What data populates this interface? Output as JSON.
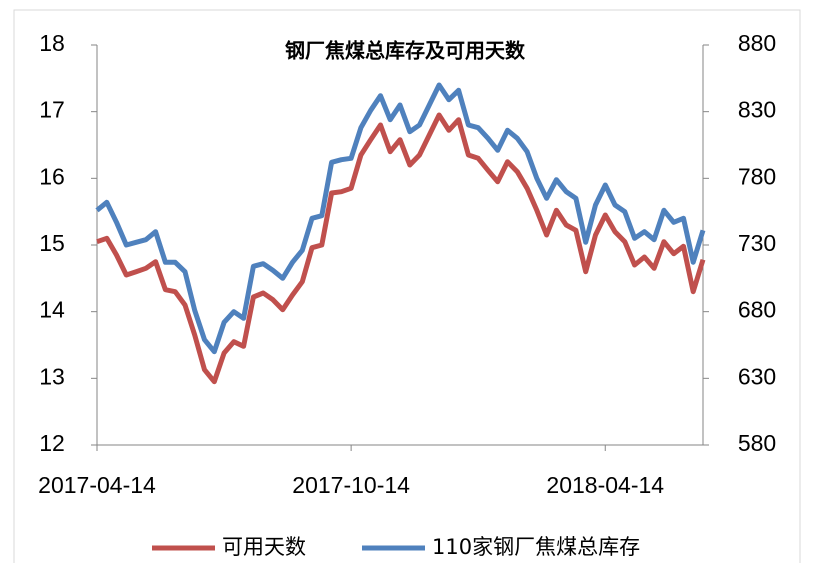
{
  "chart_data": {
    "type": "line",
    "title": "钢厂焦煤总库存及可用天数",
    "categories": [
      "2017-04-14",
      null,
      null,
      null,
      null,
      null,
      null,
      null,
      null,
      null,
      null,
      null,
      null,
      null,
      null,
      null,
      null,
      null,
      null,
      null,
      null,
      null,
      null,
      null,
      null,
      null,
      "2017-10-14",
      null,
      null,
      null,
      null,
      null,
      null,
      null,
      null,
      null,
      null,
      null,
      null,
      null,
      null,
      null,
      null,
      null,
      null,
      null,
      null,
      null,
      null,
      null,
      null,
      null,
      "2018-04-14",
      null,
      null,
      null,
      null,
      null,
      null,
      null,
      null,
      null,
      null
    ],
    "series": [
      {
        "name": "可用天数",
        "color": "#c0504d",
        "axis": "y",
        "values": [
          15.05,
          15.1,
          14.85,
          14.55,
          14.6,
          14.65,
          14.75,
          14.33,
          14.3,
          14.1,
          13.65,
          13.13,
          12.95,
          13.38,
          13.55,
          13.48,
          14.22,
          14.28,
          14.18,
          14.03,
          14.25,
          14.45,
          14.96,
          15.0,
          15.78,
          15.8,
          15.85,
          16.35,
          16.58,
          16.8,
          16.4,
          16.58,
          16.2,
          16.35,
          16.65,
          16.95,
          16.72,
          16.88,
          16.35,
          16.3,
          16.12,
          15.95,
          16.25,
          16.1,
          15.85,
          15.52,
          15.15,
          15.52,
          15.3,
          15.22,
          14.6,
          15.15,
          15.45,
          15.2,
          15.05,
          14.7,
          14.82,
          14.65,
          15.05,
          14.87,
          14.98,
          14.3,
          14.78
        ]
      },
      {
        "name": "110家钢厂焦煤总库存",
        "color": "#4f81bd",
        "axis": "y2",
        "values": [
          756,
          762,
          747,
          730,
          732,
          734,
          740,
          717,
          717,
          710,
          681,
          659,
          650,
          672,
          680,
          675,
          714,
          716,
          711,
          705,
          717,
          726,
          750,
          752,
          792,
          794,
          795,
          818,
          831,
          842,
          824,
          835,
          815,
          820,
          835,
          850,
          839,
          846,
          820,
          818,
          810,
          801,
          816,
          810,
          800,
          780,
          765,
          779,
          770,
          765,
          732,
          760,
          775,
          760,
          755,
          735,
          740,
          734,
          756,
          747,
          750,
          717,
          741
        ]
      }
    ],
    "ylim": [
      12,
      18
    ],
    "yticks": [
      12,
      13,
      14,
      15,
      16,
      17,
      18
    ],
    "y2lim": [
      580,
      880
    ],
    "y2ticks": [
      580,
      630,
      680,
      730,
      780,
      830,
      880
    ],
    "grid": false
  }
}
